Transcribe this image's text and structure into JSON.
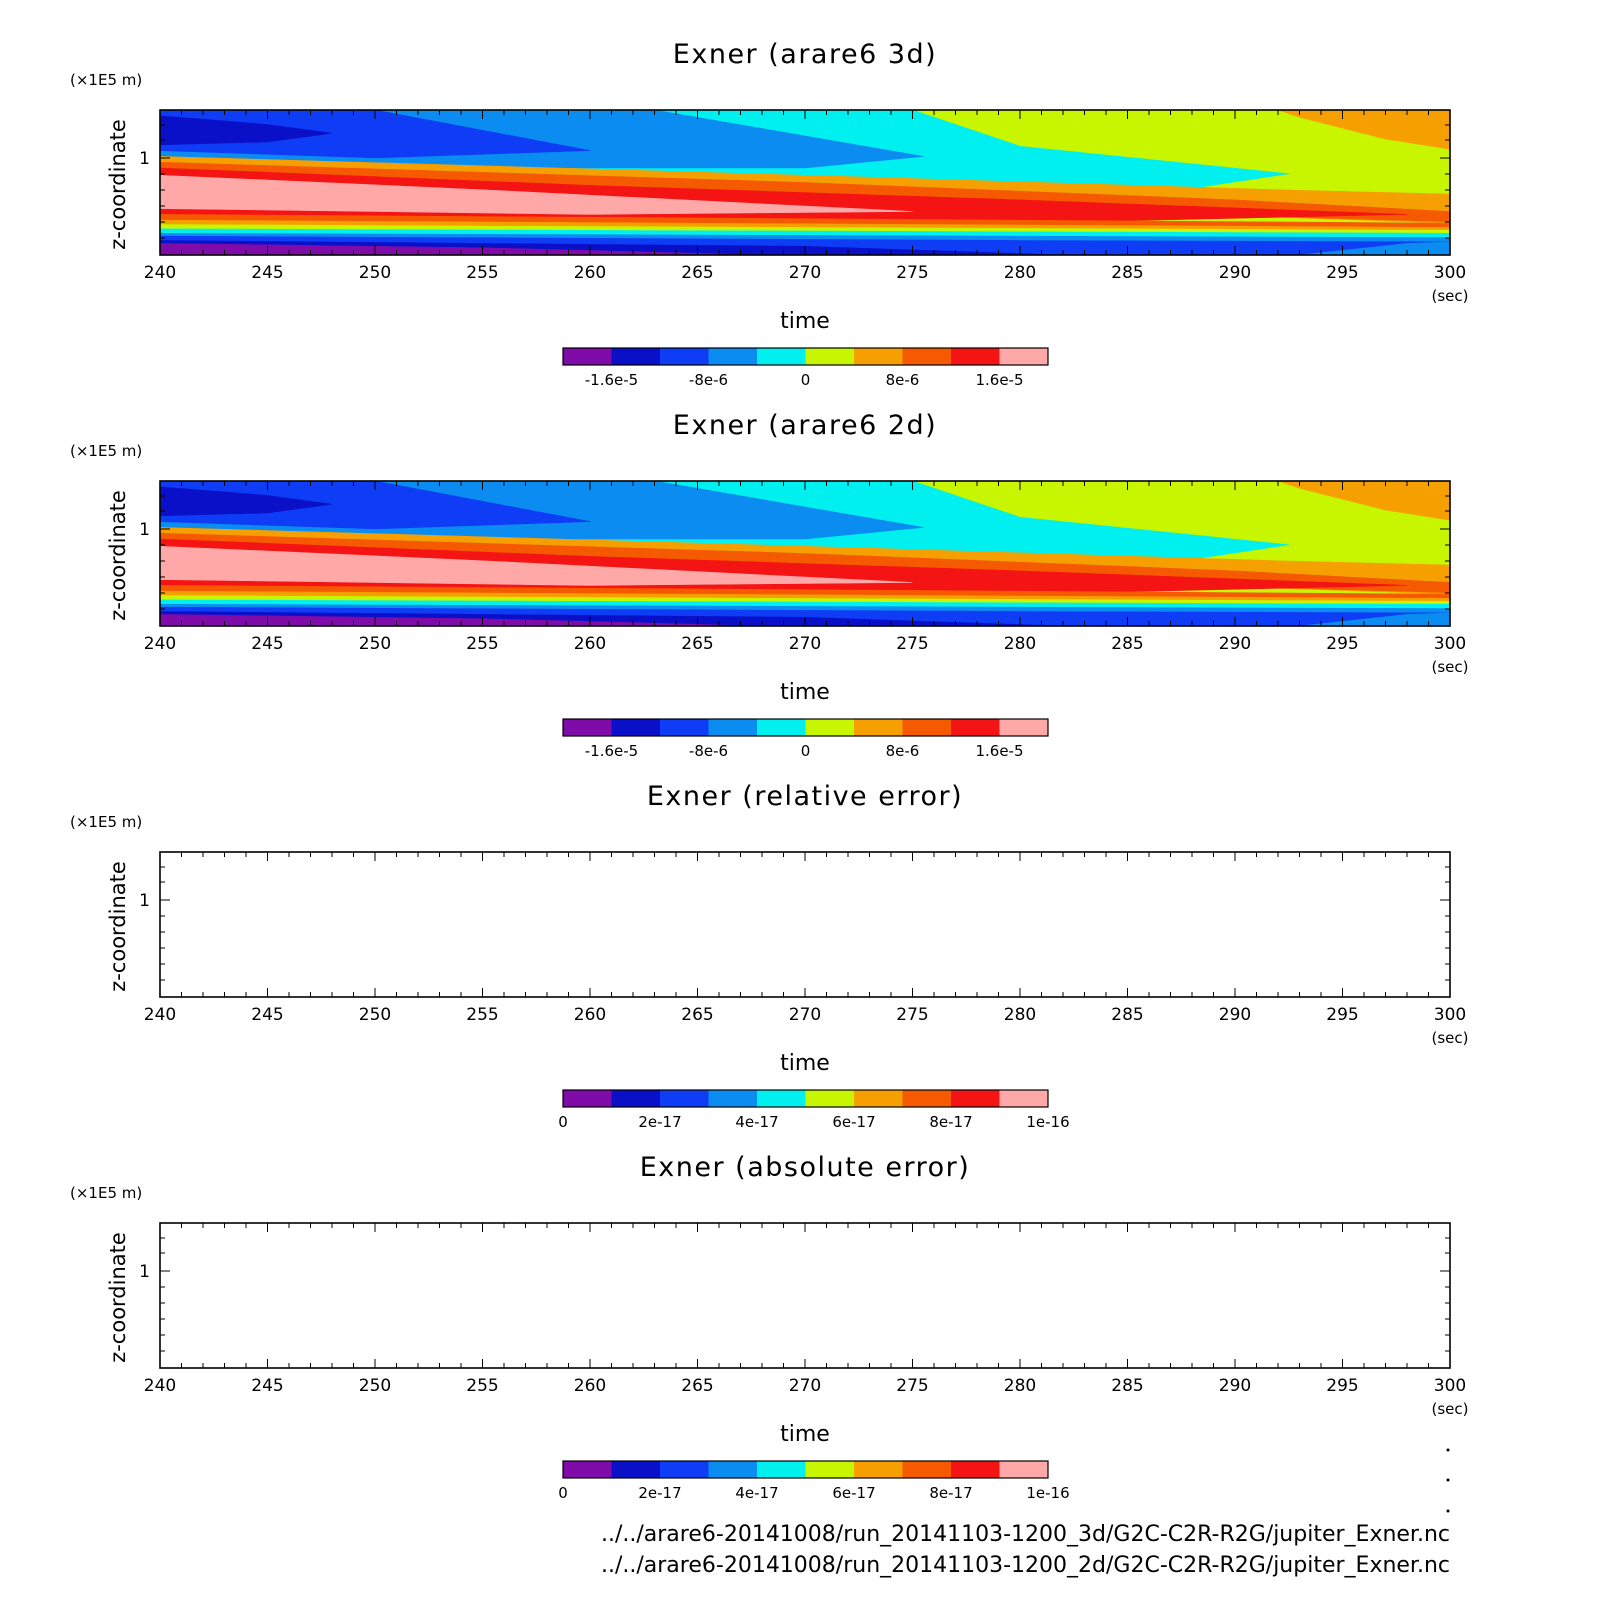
{
  "chart_data": [
    {
      "type": "heatmap",
      "title": "Exner (arare6 3d)",
      "xlabel": "time",
      "x_unit": "(sec)",
      "ylabel": "z-coordinate",
      "y_unit": "(×1E5 m)",
      "xlim": [
        240,
        300
      ],
      "xticks": [
        "240",
        "245",
        "250",
        "255",
        "260",
        "265",
        "270",
        "275",
        "280",
        "285",
        "290",
        "295",
        "300"
      ],
      "ytick_labels": [
        "1"
      ],
      "colorbar": {
        "colors": [
          "#7f0ba8",
          "#0a10c8",
          "#0f3cf5",
          "#0a8cf0",
          "#00f0f0",
          "#c8f500",
          "#f5a000",
          "#f55a00",
          "#f51414",
          "#ffa8a8"
        ],
        "tick_labels": [
          "-1.6e-5",
          "-8e-6",
          "0",
          "8e-6",
          "1.6e-5"
        ],
        "tick_positions": [
          1,
          3,
          5,
          7,
          9
        ]
      },
      "filled": true
    },
    {
      "type": "heatmap",
      "title": "Exner (arare6 2d)",
      "xlabel": "time",
      "x_unit": "(sec)",
      "ylabel": "z-coordinate",
      "y_unit": "(×1E5 m)",
      "xlim": [
        240,
        300
      ],
      "xticks": [
        "240",
        "245",
        "250",
        "255",
        "260",
        "265",
        "270",
        "275",
        "280",
        "285",
        "290",
        "295",
        "300"
      ],
      "ytick_labels": [
        "1"
      ],
      "colorbar": {
        "colors": [
          "#7f0ba8",
          "#0a10c8",
          "#0f3cf5",
          "#0a8cf0",
          "#00f0f0",
          "#c8f500",
          "#f5a000",
          "#f55a00",
          "#f51414",
          "#ffa8a8"
        ],
        "tick_labels": [
          "-1.6e-5",
          "-8e-6",
          "0",
          "8e-6",
          "1.6e-5"
        ],
        "tick_positions": [
          1,
          3,
          5,
          7,
          9
        ]
      },
      "filled": true
    },
    {
      "type": "heatmap",
      "title": "Exner (relative error)",
      "xlabel": "time",
      "x_unit": "(sec)",
      "ylabel": "z-coordinate",
      "y_unit": "(×1E5 m)",
      "xlim": [
        240,
        300
      ],
      "xticks": [
        "240",
        "245",
        "250",
        "255",
        "260",
        "265",
        "270",
        "275",
        "280",
        "285",
        "290",
        "295",
        "300"
      ],
      "ytick_labels": [
        "1"
      ],
      "colorbar": {
        "colors": [
          "#7f0ba8",
          "#0a10c8",
          "#0f3cf5",
          "#0a8cf0",
          "#00f0f0",
          "#c8f500",
          "#f5a000",
          "#f55a00",
          "#f51414",
          "#ffa8a8"
        ],
        "tick_labels": [
          "0",
          "2e-17",
          "4e-17",
          "6e-17",
          "8e-17",
          "1e-16"
        ],
        "tick_positions": [
          0,
          2,
          4,
          6,
          8,
          10
        ]
      },
      "filled": false
    },
    {
      "type": "heatmap",
      "title": "Exner (absolute error)",
      "xlabel": "time",
      "x_unit": "(sec)",
      "ylabel": "z-coordinate",
      "y_unit": "(×1E5 m)",
      "xlim": [
        240,
        300
      ],
      "xticks": [
        "240",
        "245",
        "250",
        "255",
        "260",
        "265",
        "270",
        "275",
        "280",
        "285",
        "290",
        "295",
        "300"
      ],
      "ytick_labels": [
        "1"
      ],
      "colorbar": {
        "colors": [
          "#7f0ba8",
          "#0a10c8",
          "#0f3cf5",
          "#0a8cf0",
          "#00f0f0",
          "#c8f500",
          "#f5a000",
          "#f55a00",
          "#f51414",
          "#ffa8a8"
        ],
        "tick_labels": [
          "0",
          "2e-17",
          "4e-17",
          "6e-17",
          "8e-17",
          "1e-16"
        ],
        "tick_positions": [
          0,
          2,
          4,
          6,
          8,
          10
        ]
      },
      "filled": false
    }
  ],
  "footer": {
    "file_3d": "../../arare6-20141008/run_20141103-1200_3d/G2C-C2R-R2G/jupiter_Exner.nc",
    "file_2d": "../../arare6-20141008/run_20141103-1200_2d/G2C-C2R-R2G/jupiter_Exner.nc"
  }
}
